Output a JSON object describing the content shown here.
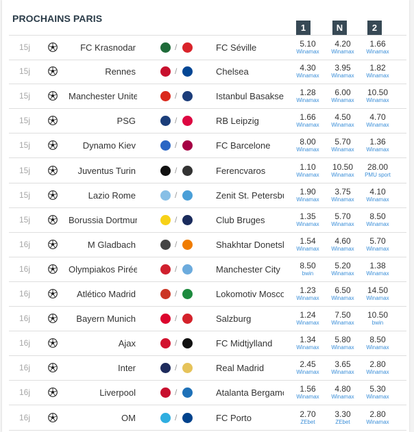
{
  "title": "PROCHAINS PARIS",
  "odds_headers": [
    "1",
    "N",
    "2"
  ],
  "colors": {
    "header_bg": "#374955",
    "bookmaker": "#3a8ed8",
    "days": "#a6a6a6"
  },
  "matches": [
    {
      "days": "15j",
      "home": "FC Krasnodar",
      "away": "FC Séville",
      "home_logo": "#1f6b3a",
      "away_logo": "#d9232a",
      "o1": "5.10",
      "b1": "Winamax",
      "oN": "4.20",
      "bN": "Winamax",
      "o2": "1.66",
      "b2": "Winamax"
    },
    {
      "days": "15j",
      "home": "Rennes",
      "away": "Chelsea",
      "home_logo": "#c8102e",
      "away_logo": "#034694",
      "o1": "4.30",
      "b1": "Winamax",
      "oN": "3.95",
      "bN": "Winamax",
      "o2": "1.82",
      "b2": "Winamax"
    },
    {
      "days": "15j",
      "home": "Manchester United",
      "away": "Istanbul Basaksehir",
      "home_logo": "#da291c",
      "away_logo": "#1c3d7a",
      "o1": "1.28",
      "b1": "Winamax",
      "oN": "6.00",
      "bN": "Winamax",
      "o2": "10.50",
      "b2": "Winamax"
    },
    {
      "days": "15j",
      "home": "PSG",
      "away": "RB Leipzig",
      "home_logo": "#1b3e7a",
      "away_logo": "#dd0741",
      "o1": "1.66",
      "b1": "Winamax",
      "oN": "4.50",
      "bN": "Winamax",
      "o2": "4.70",
      "b2": "Winamax"
    },
    {
      "days": "15j",
      "home": "Dynamo Kiev",
      "away": "FC Barcelone",
      "home_logo": "#2a66c4",
      "away_logo": "#a50044",
      "o1": "8.00",
      "b1": "Winamax",
      "oN": "5.70",
      "bN": "Winamax",
      "o2": "1.36",
      "b2": "Winamax"
    },
    {
      "days": "15j",
      "home": "Juventus Turin",
      "away": "Ferencvaros",
      "home_logo": "#111111",
      "away_logo": "#333333",
      "o1": "1.10",
      "b1": "Winamax",
      "oN": "10.50",
      "bN": "Winamax",
      "o2": "28.00",
      "b2": "PMU sport"
    },
    {
      "days": "15j",
      "home": "Lazio Rome",
      "away": "Zenit St. Petersburg",
      "home_logo": "#87bfe6",
      "away_logo": "#4a9fd8",
      "o1": "1.90",
      "b1": "Winamax",
      "oN": "3.75",
      "bN": "Winamax",
      "o2": "4.10",
      "b2": "Winamax"
    },
    {
      "days": "15j",
      "home": "Borussia Dortmund",
      "away": "Club Bruges",
      "home_logo": "#f7d117",
      "away_logo": "#1a2b5c",
      "o1": "1.35",
      "b1": "Winamax",
      "oN": "5.70",
      "bN": "Winamax",
      "o2": "8.50",
      "b2": "Winamax"
    },
    {
      "days": "16j",
      "home": "M Gladbach",
      "away": "Shakhtar Donetsk",
      "home_logo": "#444444",
      "away_logo": "#f07c00",
      "o1": "1.54",
      "b1": "Winamax",
      "oN": "4.60",
      "bN": "Winamax",
      "o2": "5.70",
      "b2": "Winamax"
    },
    {
      "days": "16j",
      "home": "Olympiakos Pirée",
      "away": "Manchester City",
      "home_logo": "#d0202e",
      "away_logo": "#6cabdd",
      "o1": "8.50",
      "b1": "bwin",
      "oN": "5.20",
      "bN": "Winamax",
      "o2": "1.38",
      "b2": "Winamax"
    },
    {
      "days": "16j",
      "home": "Atlético Madrid",
      "away": "Lokomotiv Moscow",
      "home_logo": "#cb3524",
      "away_logo": "#1d8a3e",
      "o1": "1.23",
      "b1": "Winamax",
      "oN": "6.50",
      "bN": "Winamax",
      "o2": "14.50",
      "b2": "Winamax"
    },
    {
      "days": "16j",
      "home": "Bayern Munich",
      "away": "Salzburg",
      "home_logo": "#dc052d",
      "away_logo": "#d4222b",
      "o1": "1.24",
      "b1": "Winamax",
      "oN": "7.50",
      "bN": "Winamax",
      "o2": "10.50",
      "b2": "bwin"
    },
    {
      "days": "16j",
      "home": "Ajax",
      "away": "FC Midtjylland",
      "home_logo": "#d2122e",
      "away_logo": "#111111",
      "o1": "1.34",
      "b1": "Winamax",
      "oN": "5.80",
      "bN": "Winamax",
      "o2": "8.50",
      "b2": "Winamax"
    },
    {
      "days": "16j",
      "home": "Inter",
      "away": "Real Madrid",
      "home_logo": "#1e2b5c",
      "away_logo": "#e6c35a",
      "o1": "2.45",
      "b1": "Winamax",
      "oN": "3.65",
      "bN": "Winamax",
      "o2": "2.80",
      "b2": "Winamax"
    },
    {
      "days": "16j",
      "home": "Liverpool",
      "away": "Atalanta Bergamo",
      "home_logo": "#c8102e",
      "away_logo": "#1e71b8",
      "o1": "1.56",
      "b1": "Winamax",
      "oN": "4.80",
      "bN": "Winamax",
      "o2": "5.30",
      "b2": "Winamax"
    },
    {
      "days": "16j",
      "home": "OM",
      "away": "FC Porto",
      "home_logo": "#2faee0",
      "away_logo": "#00428c",
      "o1": "2.70",
      "b1": "ZEbet",
      "oN": "3.30",
      "bN": "ZEbet",
      "o2": "2.80",
      "b2": "Winamax"
    }
  ]
}
